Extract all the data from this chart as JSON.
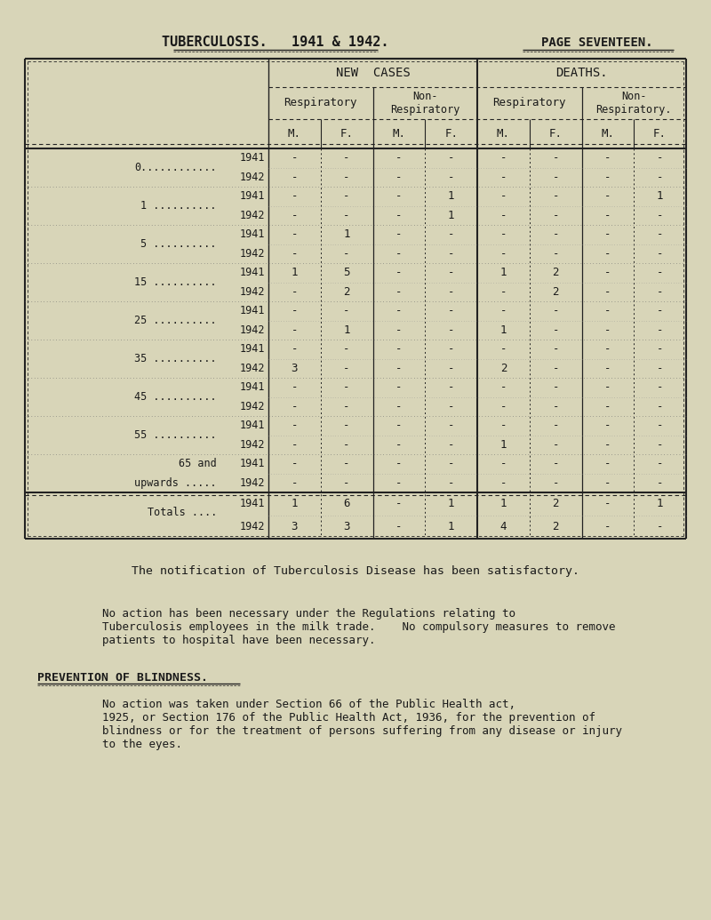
{
  "title": "TUBERCULOSIS.   1941 & 1942.",
  "page": "PAGE SEVENTEEN.",
  "bg_color": "#d8d5b8",
  "text_color": "#1a1a1a",
  "header_rows": [
    "NEW  CASES",
    "DEATHS."
  ],
  "sub_headers": [
    "Respiratory",
    "Non-\nRespiratory",
    "Respiratory",
    "Non-\nRespiratory."
  ],
  "mf_labels": [
    "M.",
    "F.",
    "M.",
    "F.",
    "M.",
    "F.",
    "M.",
    "F."
  ],
  "age_group_keys": [
    "0",
    "1",
    "5",
    "15",
    "25",
    "35",
    "45",
    "55",
    "65"
  ],
  "age_labels": {
    "0": "0............",
    "1": "1 ..........",
    "5": "5 ..........",
    "15": "15 ..........",
    "25": "25 ..........",
    "35": "35 ..........",
    "45": "45 ..........",
    "55": "55 ..........",
    "65": [
      "65 and",
      "upwards ....."
    ]
  },
  "data": {
    "0": {
      "1941": [
        "-",
        "-",
        "-",
        "-",
        "-",
        "-",
        "-",
        "-"
      ],
      "1942": [
        "-",
        "-",
        "-",
        "-",
        "-",
        "-",
        "-",
        "-"
      ]
    },
    "1": {
      "1941": [
        "-",
        "-",
        "-",
        "1",
        "-",
        "-",
        "-",
        "1"
      ],
      "1942": [
        "-",
        "-",
        "-",
        "1",
        "-",
        "-",
        "-",
        "-"
      ]
    },
    "5": {
      "1941": [
        "-",
        "1",
        "-",
        "-",
        "-",
        "-",
        "-",
        "-"
      ],
      "1942": [
        "-",
        "-",
        "-",
        "-",
        "-",
        "-",
        "-",
        "-"
      ]
    },
    "15": {
      "1941": [
        "1",
        "5",
        "-",
        "-",
        "1",
        "2",
        "-",
        "-"
      ],
      "1942": [
        "-",
        "2",
        "-",
        "-",
        "-",
        "2",
        "-",
        "-"
      ]
    },
    "25": {
      "1941": [
        "-",
        "-",
        "-",
        "-",
        "-",
        "-",
        "-",
        "-"
      ],
      "1942": [
        "-",
        "1",
        "-",
        "-",
        "1",
        "-",
        "-",
        "-"
      ]
    },
    "35": {
      "1941": [
        "-",
        "-",
        "-",
        "-",
        "-",
        "-",
        "-",
        "-"
      ],
      "1942": [
        "3",
        "-",
        "-",
        "-",
        "2",
        "-",
        "-",
        "-"
      ]
    },
    "45": {
      "1941": [
        "-",
        "-",
        "-",
        "-",
        "-",
        "-",
        "-",
        "-"
      ],
      "1942": [
        "-",
        "-",
        "-",
        "-",
        "-",
        "-",
        "-",
        "-"
      ]
    },
    "55": {
      "1941": [
        "-",
        "-",
        "-",
        "-",
        "-",
        "-",
        "-",
        "-"
      ],
      "1942": [
        "-",
        "-",
        "-",
        "-",
        "1",
        "-",
        "-",
        "-"
      ]
    },
    "65": {
      "1941": [
        "-",
        "-",
        "-",
        "-",
        "-",
        "-",
        "-",
        "-"
      ],
      "1942": [
        "-",
        "-",
        "-",
        "-",
        "-",
        "-",
        "-",
        "-"
      ]
    }
  },
  "totals": {
    "1941": [
      "1",
      "6",
      "-",
      "1",
      "1",
      "2",
      "-",
      "1"
    ],
    "1942": [
      "3",
      "3",
      "-",
      "1",
      "4",
      "2",
      "-",
      "-"
    ]
  },
  "paragraph1": "The notification of Tuberculosis Disease has been satisfactory.",
  "paragraph2_indent": "No action has been necessary under the Regulations relating to\nTuberculosis employees in the milk trade.    No compulsory measures to remove\npatients to hospital have been necessary.",
  "section_title": "PREVENTION OF BLINDNESS.",
  "paragraph3_indent": "No action was taken under Section 66 of the Public Health act,\n1925, or Section 176 of the Public Health Act, 1936, for the prevention of\nblindness or for the treatment of persons suffering from any disease or injury\nto the eyes."
}
